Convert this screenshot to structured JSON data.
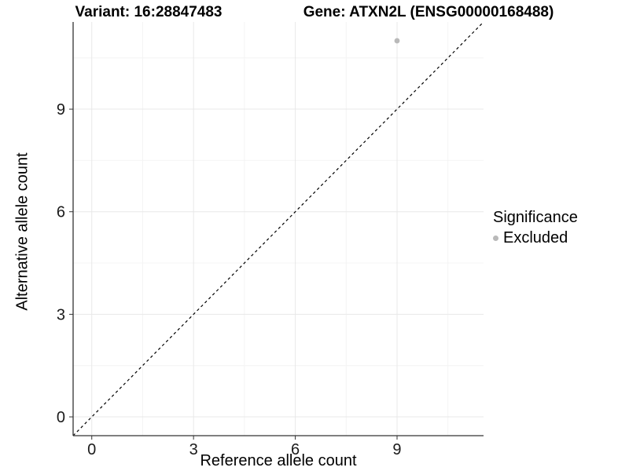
{
  "chart_data": {
    "type": "scatter",
    "titles": {
      "left": "Variant: 16:28847483",
      "right": "Gene: ATXN2L (ENSG00000168488)"
    },
    "xlabel": "Reference allele count",
    "ylabel": "Alternative allele count",
    "xlim": [
      -0.55,
      11.55
    ],
    "ylim": [
      -0.55,
      11.55
    ],
    "x_ticks": [
      0,
      3,
      6,
      9
    ],
    "y_ticks": [
      0,
      3,
      6,
      9
    ],
    "x_minor_ticks": [
      1.5,
      4.5,
      7.5,
      10.5
    ],
    "y_minor_ticks": [
      1.5,
      4.5,
      7.5,
      10.5
    ],
    "grid": "on",
    "reference_line": {
      "kind": "identity y=x",
      "style": "dashed",
      "color": "#000000"
    },
    "series": [
      {
        "name": "Excluded",
        "color": "#b9b9b9",
        "points": [
          [
            9,
            11
          ]
        ]
      }
    ],
    "legend": {
      "title": "Significance",
      "position": "right",
      "items": [
        {
          "label": "Excluded",
          "color": "#b9b9b9"
        }
      ]
    },
    "colors": {
      "grid_major": "#e8e8e8",
      "grid_minor": "#f4f4f4",
      "axis_line": "#333333",
      "tick_mark": "#333333",
      "tick_text": "#1a1a1a",
      "background": "#ffffff"
    }
  }
}
